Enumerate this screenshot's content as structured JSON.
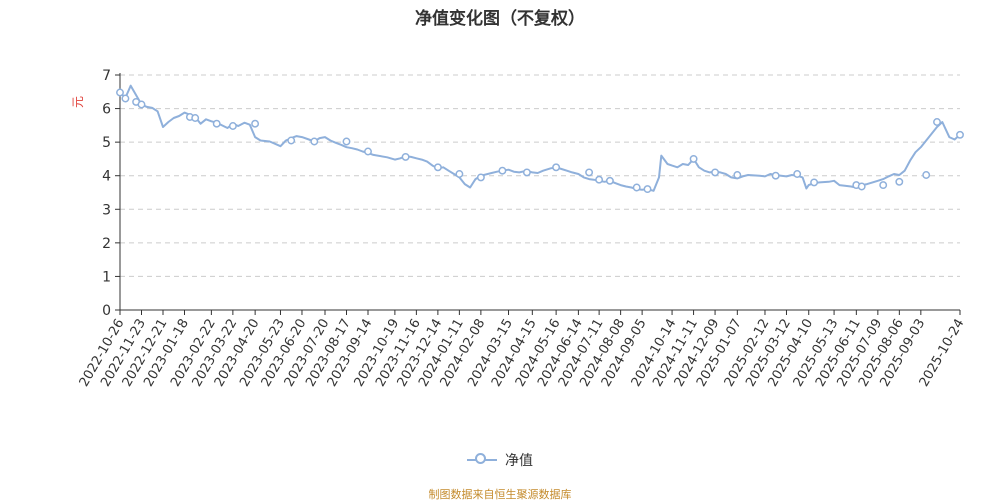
{
  "chart_data": {
    "type": "line",
    "title": "净值变化图（不复权）",
    "ylabel": "元",
    "ylim": [
      0,
      7
    ],
    "y_ticks": [
      "0",
      "1",
      "2",
      "3",
      "4",
      "5",
      "6",
      "7"
    ],
    "grid": true,
    "legend_position": "bottom",
    "x_tick_labels": [
      "2022-10-26",
      "2022-11-23",
      "2022-12-21",
      "2023-01-18",
      "2023-02-22",
      "2023-03-22",
      "2023-04-20",
      "2023-05-23",
      "2023-06-20",
      "2023-07-20",
      "2023-08-17",
      "2023-09-14",
      "2023-10-19",
      "2023-11-16",
      "2023-12-14",
      "2024-01-11",
      "2024-02-08",
      "2024-03-15",
      "2024-04-15",
      "2024-05-16",
      "2024-06-14",
      "2024-07-11",
      "2024-08-08",
      "2024-09-05",
      "2024-10-14",
      "2024-11-11",
      "2024-12-09",
      "2025-01-07",
      "2025-02-12",
      "2025-03-12",
      "2025-04-10",
      "2025-05-13",
      "2025-06-11",
      "2025-07-09",
      "2025-08-06",
      "2025-09-03",
      "2025-10-24"
    ],
    "series": [
      {
        "name": "净值",
        "color": "#8fb0db",
        "x": [
          "2022-10-26",
          "2022-11-02",
          "2022-11-09",
          "2022-11-16",
          "2022-11-23",
          "2022-11-30",
          "2022-12-07",
          "2022-12-14",
          "2022-12-21",
          "2022-12-28",
          "2023-01-04",
          "2023-01-11",
          "2023-01-18",
          "2023-02-01",
          "2023-02-08",
          "2023-02-15",
          "2023-02-22",
          "2023-03-01",
          "2023-03-08",
          "2023-03-15",
          "2023-03-22",
          "2023-03-29",
          "2023-04-06",
          "2023-04-13",
          "2023-04-20",
          "2023-04-27",
          "2023-05-09",
          "2023-05-16",
          "2023-05-23",
          "2023-05-30",
          "2023-06-06",
          "2023-06-13",
          "2023-06-20",
          "2023-06-29",
          "2023-07-06",
          "2023-07-13",
          "2023-07-20",
          "2023-07-27",
          "2023-08-03",
          "2023-08-10",
          "2023-08-17",
          "2023-08-24",
          "2023-08-31",
          "2023-09-07",
          "2023-09-14",
          "2023-09-21",
          "2023-10-09",
          "2023-10-19",
          "2023-10-26",
          "2023-11-02",
          "2023-11-09",
          "2023-11-16",
          "2023-11-23",
          "2023-11-30",
          "2023-12-07",
          "2023-12-14",
          "2023-12-21",
          "2023-12-28",
          "2024-01-04",
          "2024-01-11",
          "2024-01-18",
          "2024-01-25",
          "2024-02-01",
          "2024-02-08",
          "2024-02-22",
          "2024-02-29",
          "2024-03-07",
          "2024-03-15",
          "2024-03-22",
          "2024-03-29",
          "2024-04-08",
          "2024-04-15",
          "2024-04-22",
          "2024-04-29",
          "2024-05-09",
          "2024-05-16",
          "2024-05-23",
          "2024-05-30",
          "2024-06-06",
          "2024-06-14",
          "2024-06-21",
          "2024-06-28",
          "2024-07-04",
          "2024-07-11",
          "2024-07-18",
          "2024-07-25",
          "2024-08-01",
          "2024-08-08",
          "2024-08-15",
          "2024-08-22",
          "2024-08-29",
          "2024-09-05",
          "2024-09-12",
          "2024-09-20",
          "2024-09-27",
          "2024-09-30",
          "2024-10-08",
          "2024-10-14",
          "2024-10-21",
          "2024-10-28",
          "2024-11-04",
          "2024-11-11",
          "2024-11-18",
          "2024-11-25",
          "2024-12-02",
          "2024-12-09",
          "2024-12-16",
          "2024-12-23",
          "2024-12-30",
          "2025-01-07",
          "2025-01-14",
          "2025-01-21",
          "2025-02-05",
          "2025-02-12",
          "2025-02-19",
          "2025-02-26",
          "2025-03-05",
          "2025-03-12",
          "2025-03-19",
          "2025-03-26",
          "2025-04-02",
          "2025-04-07",
          "2025-04-10",
          "2025-04-17",
          "2025-04-24",
          "2025-05-06",
          "2025-05-13",
          "2025-05-20",
          "2025-05-27",
          "2025-06-04",
          "2025-06-11",
          "2025-06-18",
          "2025-06-25",
          "2025-07-02",
          "2025-07-09",
          "2025-07-16",
          "2025-07-23",
          "2025-07-30",
          "2025-08-06",
          "2025-08-13",
          "2025-08-20",
          "2025-08-27",
          "2025-09-03",
          "2025-09-10",
          "2025-09-17",
          "2025-09-24",
          "2025-10-01",
          "2025-10-10",
          "2025-10-17",
          "2025-10-24"
        ],
        "y": [
          6.48,
          6.32,
          6.68,
          6.4,
          6.12,
          6.05,
          6.02,
          5.92,
          5.45,
          5.6,
          5.72,
          5.78,
          5.88,
          5.75,
          5.55,
          5.68,
          5.62,
          5.58,
          5.5,
          5.42,
          5.55,
          5.48,
          5.58,
          5.52,
          5.15,
          5.05,
          5.02,
          4.95,
          4.88,
          5.05,
          5.12,
          5.18,
          5.15,
          5.08,
          5.02,
          5.12,
          5.15,
          5.05,
          4.98,
          4.92,
          4.85,
          4.82,
          4.78,
          4.72,
          4.68,
          4.62,
          4.55,
          4.48,
          4.52,
          4.58,
          4.56,
          4.52,
          4.48,
          4.42,
          4.3,
          4.22,
          4.25,
          4.15,
          4.05,
          3.95,
          3.75,
          3.65,
          3.9,
          4.0,
          4.08,
          4.12,
          4.15,
          4.18,
          4.12,
          4.1,
          4.15,
          4.1,
          4.08,
          4.15,
          4.22,
          4.25,
          4.2,
          4.15,
          4.1,
          4.05,
          3.95,
          3.9,
          3.88,
          3.85,
          3.82,
          3.85,
          3.78,
          3.72,
          3.68,
          3.65,
          3.6,
          3.58,
          3.6,
          3.55,
          3.95,
          4.6,
          4.35,
          4.3,
          4.25,
          4.35,
          4.32,
          4.5,
          4.25,
          4.15,
          4.1,
          4.12,
          4.1,
          4.05,
          3.95,
          3.92,
          3.98,
          4.02,
          4.0,
          3.98,
          4.05,
          4.02,
          4.0,
          3.98,
          4.02,
          4.0,
          3.95,
          3.62,
          3.72,
          3.78,
          3.8,
          3.82,
          3.85,
          3.72,
          3.7,
          3.68,
          3.65,
          3.72,
          3.75,
          3.8,
          3.85,
          3.9,
          3.98,
          4.05,
          4.02,
          4.15,
          4.45,
          4.7,
          4.85,
          5.05,
          5.25,
          5.45,
          5.6,
          5.15,
          5.08,
          5.22
        ],
        "marker_x": [
          "2022-10-26",
          "2022-11-02",
          "2022-11-16",
          "2022-11-23",
          "2023-01-25",
          "2023-02-01",
          "2023-03-01",
          "2023-03-22",
          "2023-04-20",
          "2023-06-06",
          "2023-07-06",
          "2023-08-17",
          "2023-09-14",
          "2023-11-02",
          "2023-12-14",
          "2024-01-11",
          "2024-02-08",
          "2024-03-07",
          "2024-04-08",
          "2024-05-16",
          "2024-06-28",
          "2024-07-11",
          "2024-07-25",
          "2024-08-29",
          "2024-09-12",
          "2024-11-11",
          "2024-12-09",
          "2025-01-07",
          "2025-02-26",
          "2025-03-26",
          "2025-04-17",
          "2025-06-11",
          "2025-06-18",
          "2025-07-16",
          "2025-08-06",
          "2025-09-10",
          "2025-09-24",
          "2025-10-24"
        ],
        "marker_y": [
          6.48,
          6.3,
          6.2,
          6.12,
          5.75,
          5.72,
          5.55,
          5.48,
          5.55,
          5.05,
          5.02,
          5.02,
          4.72,
          4.56,
          4.25,
          4.05,
          3.95,
          4.15,
          4.1,
          4.25,
          4.1,
          3.88,
          3.85,
          3.65,
          3.6,
          4.5,
          4.1,
          4.02,
          4.0,
          4.05,
          3.8,
          3.72,
          3.68,
          3.72,
          3.82,
          4.02,
          5.6,
          5.22
        ]
      }
    ]
  },
  "legend": {
    "label": "净值"
  },
  "source_note": "制图数据来自恒生聚源数据库"
}
